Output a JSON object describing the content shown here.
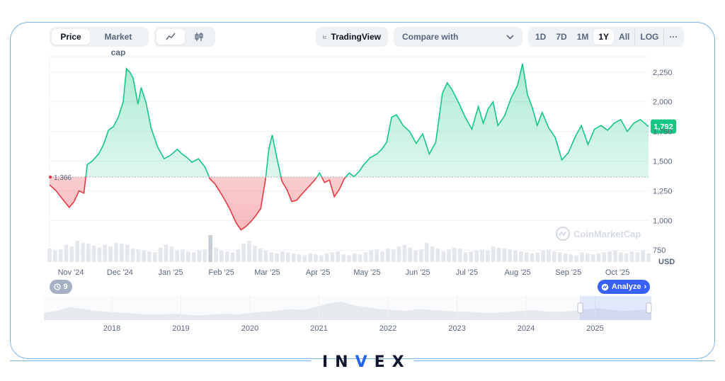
{
  "toolbar": {
    "view_tabs": [
      {
        "label": "Price",
        "active": true
      },
      {
        "label": "Market cap",
        "active": false
      }
    ],
    "chart_type_icons": [
      {
        "icon": "line-chart-icon",
        "active": true
      },
      {
        "icon": "candlestick-icon",
        "active": false
      }
    ],
    "tradingview_label": "TradingView",
    "compare_label": "Compare with",
    "ranges": [
      {
        "label": "1D",
        "active": false
      },
      {
        "label": "7D",
        "active": false
      },
      {
        "label": "1M",
        "active": false
      },
      {
        "label": "1Y",
        "active": true
      },
      {
        "label": "All",
        "active": false
      },
      {
        "label": "LOG",
        "active": false
      }
    ],
    "more_label": "···"
  },
  "watermark": "CoinMarketCap",
  "currency_label": "USD",
  "history_badge": "9",
  "analyze_label": "Analyze",
  "brand": {
    "left": "IN",
    "mid": "V",
    "right": "EX"
  },
  "colors": {
    "up": "#16c784",
    "down": "#ea3943",
    "accent": "#3861fb",
    "grid": "#eff2f5",
    "text": "#58667e"
  },
  "chart_data": {
    "type": "line",
    "title": "",
    "xlabel": "",
    "ylabel": "USD",
    "baseline": 1366,
    "baseline_label": "1,366",
    "last_price_label": "1,792",
    "ylim": [
      650,
      2380
    ],
    "yticks": [
      750,
      1000,
      1250,
      1500,
      1750,
      2000,
      2250
    ],
    "ytick_labels": [
      "750",
      "1,000",
      "1,250",
      "1,500",
      "1,750",
      "2,000",
      "2,250"
    ],
    "xlim": [
      "2024-10-19",
      "2025-10-20"
    ],
    "xticks": [
      {
        "date": "2024-11-01",
        "label": "Nov '24"
      },
      {
        "date": "2024-12-01",
        "label": "Dec '24"
      },
      {
        "date": "2025-01-01",
        "label": "Jan '25"
      },
      {
        "date": "2025-02-01",
        "label": "Feb '25"
      },
      {
        "date": "2025-03-01",
        "label": "Mar '25"
      },
      {
        "date": "2025-04-01",
        "label": "Apr '25"
      },
      {
        "date": "2025-05-01",
        "label": "May '25"
      },
      {
        "date": "2025-06-01",
        "label": "Jun '25"
      },
      {
        "date": "2025-07-01",
        "label": "Jul '25"
      },
      {
        "date": "2025-08-01",
        "label": "Aug '25"
      },
      {
        "date": "2025-09-01",
        "label": "Sep '25"
      },
      {
        "date": "2025-10-01",
        "label": "Oct '25"
      }
    ],
    "series": [
      {
        "x": [
          "2024-10-19",
          "2024-10-23",
          "2024-10-27",
          "2024-10-31",
          "2024-11-03",
          "2024-11-06",
          "2024-11-09",
          "2024-11-11",
          "2024-11-14",
          "2024-11-18",
          "2024-11-21",
          "2024-11-24",
          "2024-11-27",
          "2024-11-30",
          "2024-12-03",
          "2024-12-05",
          "2024-12-07",
          "2024-12-09",
          "2024-12-12",
          "2024-12-14",
          "2024-12-17",
          "2024-12-20",
          "2024-12-24",
          "2024-12-28",
          "2025-01-01",
          "2025-01-05",
          "2025-01-08",
          "2025-01-11",
          "2025-01-14",
          "2025-01-18",
          "2025-01-22",
          "2025-01-25",
          "2025-01-28",
          "2025-02-02",
          "2025-02-06",
          "2025-02-10",
          "2025-02-13",
          "2025-02-16",
          "2025-02-19",
          "2025-02-22",
          "2025-02-25",
          "2025-02-28",
          "2025-03-02",
          "2025-03-04",
          "2025-03-07",
          "2025-03-10",
          "2025-03-13",
          "2025-03-16",
          "2025-03-19",
          "2025-03-22",
          "2025-03-26",
          "2025-03-30",
          "2025-04-02",
          "2025-04-05",
          "2025-04-08",
          "2025-04-11",
          "2025-04-14",
          "2025-04-17",
          "2025-04-20",
          "2025-04-23",
          "2025-04-26",
          "2025-04-29",
          "2025-05-03",
          "2025-05-07",
          "2025-05-10",
          "2025-05-13",
          "2025-05-16",
          "2025-05-19",
          "2025-05-23",
          "2025-05-27",
          "2025-05-31",
          "2025-06-04",
          "2025-06-08",
          "2025-06-12",
          "2025-06-16",
          "2025-06-19",
          "2025-06-22",
          "2025-06-26",
          "2025-06-30",
          "2025-07-04",
          "2025-07-08",
          "2025-07-11",
          "2025-07-14",
          "2025-07-17",
          "2025-07-20",
          "2025-07-24",
          "2025-07-28",
          "2025-08-01",
          "2025-08-04",
          "2025-08-07",
          "2025-08-10",
          "2025-08-13",
          "2025-08-16",
          "2025-08-20",
          "2025-08-24",
          "2025-08-28",
          "2025-09-01",
          "2025-09-05",
          "2025-09-09",
          "2025-09-13",
          "2025-09-17",
          "2025-09-21",
          "2025-09-25",
          "2025-09-29",
          "2025-10-03",
          "2025-10-07",
          "2025-10-11",
          "2025-10-15",
          "2025-10-20"
        ],
        "values": [
          1300,
          1250,
          1180,
          1110,
          1160,
          1250,
          1230,
          1470,
          1500,
          1560,
          1640,
          1760,
          1790,
          1870,
          2000,
          2280,
          2250,
          2200,
          1980,
          2120,
          1990,
          1780,
          1620,
          1520,
          1550,
          1600,
          1560,
          1530,
          1490,
          1520,
          1450,
          1350,
          1310,
          1200,
          1100,
          980,
          920,
          950,
          990,
          1040,
          1100,
          1350,
          1600,
          1720,
          1520,
          1330,
          1260,
          1160,
          1170,
          1220,
          1280,
          1340,
          1400,
          1320,
          1340,
          1200,
          1260,
          1350,
          1400,
          1370,
          1410,
          1470,
          1530,
          1560,
          1600,
          1660,
          1870,
          1890,
          1800,
          1750,
          1650,
          1730,
          1560,
          1660,
          2070,
          2160,
          2100,
          1990,
          1870,
          1770,
          1960,
          1820,
          1940,
          2000,
          1800,
          1880,
          2030,
          2140,
          2320,
          2060,
          1950,
          1800,
          1910,
          1780,
          1700,
          1510,
          1570,
          1700,
          1800,
          1640,
          1770,
          1800,
          1760,
          1820,
          1850,
          1750,
          1820,
          1850,
          1792
        ]
      }
    ],
    "volume": [
      14,
      12,
      13,
      18,
      16,
      22,
      20,
      19,
      17,
      15,
      18,
      16,
      20,
      19,
      18,
      14,
      13,
      12,
      11,
      10,
      15,
      18,
      16,
      12,
      13,
      11,
      10,
      12,
      13,
      28,
      15,
      12,
      11,
      10,
      13,
      19,
      22,
      17,
      14,
      12,
      10,
      9,
      11,
      10,
      9,
      8,
      7,
      9,
      8,
      7,
      9,
      10,
      11,
      8,
      7,
      9,
      8,
      10,
      12,
      13,
      11,
      14,
      13,
      16,
      18,
      15,
      12,
      13,
      20,
      16,
      14,
      11,
      13,
      15,
      14,
      10,
      11,
      12,
      13,
      12,
      16,
      15,
      14,
      13,
      12,
      11,
      10,
      9,
      10,
      12,
      13,
      11,
      10,
      9,
      8,
      7,
      10,
      9,
      8,
      9,
      10,
      11,
      12,
      10,
      9,
      11,
      10,
      12,
      9
    ],
    "volume_peak_index": 29,
    "navigator": {
      "xticks": [
        "2018",
        "2019",
        "2020",
        "2021",
        "2022",
        "2023",
        "2024",
        "2025"
      ],
      "values": [
        8,
        10,
        14,
        12,
        10,
        9,
        8,
        7,
        6,
        6,
        7,
        6,
        5,
        6,
        7,
        6,
        8,
        9,
        10,
        12,
        11,
        14,
        18,
        20,
        16,
        14,
        12,
        11,
        10,
        12,
        11,
        10,
        9,
        9,
        8,
        8,
        9,
        10,
        11,
        9,
        9,
        10,
        12,
        13,
        11,
        10,
        11,
        12
      ]
    }
  }
}
